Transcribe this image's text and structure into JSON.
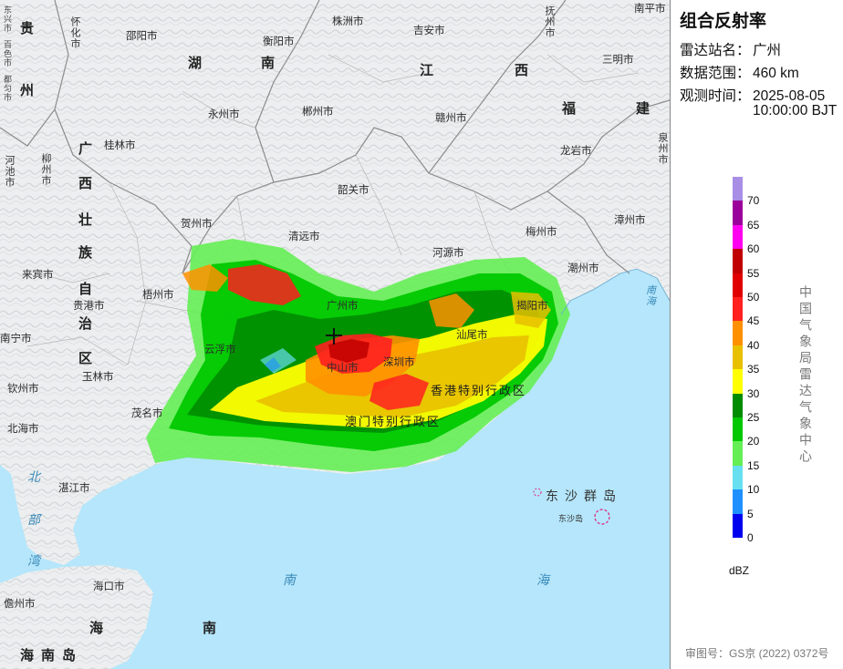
{
  "panel": {
    "title": "组合反射率",
    "station_key": "雷达站名：",
    "station_value": "广州",
    "range_key": "数据范围：",
    "range_value": "460 km",
    "time_key": "观测时间：",
    "time_date": "2025-08-05",
    "time_clock": "10:00:00 BJT",
    "agency": "中国气象局雷达气象中心",
    "unit": "dBZ",
    "review_number": "审图号：GS京 (2022) 0372号"
  },
  "color_scale": [
    {
      "value": "70",
      "color": "#a98ee6"
    },
    {
      "value": "65",
      "color": "#9a009a"
    },
    {
      "value": "60",
      "color": "#ff00f0"
    },
    {
      "value": "55",
      "color": "#c00000"
    },
    {
      "value": "50",
      "color": "#e00000"
    },
    {
      "value": "45",
      "color": "#ff2020"
    },
    {
      "value": "40",
      "color": "#ff9000"
    },
    {
      "value": "35",
      "color": "#e8c000"
    },
    {
      "value": "30",
      "color": "#ffff00"
    },
    {
      "value": "25",
      "color": "#008c00"
    },
    {
      "value": "20",
      "color": "#00c800"
    },
    {
      "value": "15",
      "color": "#66ee55"
    },
    {
      "value": "10",
      "color": "#66e0f0"
    },
    {
      "value": "5",
      "color": "#1e90ff"
    },
    {
      "value": "0",
      "color": "#0000ee"
    }
  ],
  "map": {
    "province_labels": [
      "贵",
      "州",
      "湖",
      "南",
      "江",
      "西",
      "福",
      "建",
      "广",
      "西",
      "壮",
      "族",
      "自",
      "治",
      "区",
      "海"
    ],
    "island_labels": [
      "海",
      "南",
      "岛",
      "南"
    ],
    "sea_labels": [
      "北",
      "部",
      "湾",
      "南",
      "海",
      "南",
      "海"
    ],
    "cities": [
      "南平市",
      "怀化市",
      "邵阳市",
      "株洲市",
      "衡阳市",
      "吉安市",
      "抚州市",
      "三明市",
      "永州市",
      "郴州市",
      "赣州市",
      "龙岩市",
      "泉州市",
      "桂林市",
      "柳州市",
      "河池市",
      "韶关市",
      "贺州市",
      "清远市",
      "梅州市",
      "漳州市",
      "河源市",
      "潮州市",
      "来宾市",
      "梧州市",
      "贵港市",
      "广州市",
      "南宁市",
      "云浮市",
      "玉林市",
      "中山市",
      "深圳市",
      "钦州市",
      "茂名市",
      "北海市",
      "湛江市",
      "海口市",
      "儋州市",
      "汕尾市",
      "揭阳市"
    ],
    "dongsha": "东沙群岛",
    "dongsha_small": "东沙岛",
    "hk": "香港特别行政区",
    "macau": "澳门特别行政区",
    "edge_labels": [
      "东兴市",
      "百色市",
      "都匀市"
    ]
  }
}
